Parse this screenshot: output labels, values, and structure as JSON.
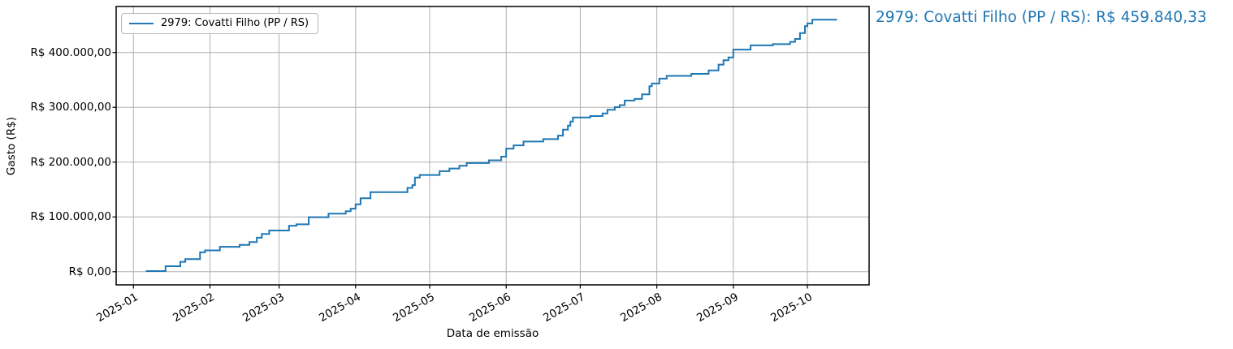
{
  "annotation": {
    "text": "2979: Covatti Filho (PP / RS): R$ 459.840,33",
    "color": "#1f77b4"
  },
  "chart_data": {
    "type": "line",
    "style": "cumulative-step",
    "title": "",
    "xlabel": "Data de emissão",
    "ylabel": "Gasto (R$)",
    "grid": true,
    "legend": {
      "position": "upper left",
      "entries": [
        {
          "label": "2979: Covatti Filho (PP / RS)",
          "color": "#1f77b4"
        }
      ]
    },
    "line_color": "#1f77b4",
    "grid_color": "#b0b0b0",
    "x_range": [
      "2024-12-25",
      "2025-10-26"
    ],
    "y_range": [
      -24000,
      484000
    ],
    "x_ticks": [
      {
        "label": "2025-01",
        "date": "2025-01-01"
      },
      {
        "label": "2025-02",
        "date": "2025-02-01"
      },
      {
        "label": "2025-03",
        "date": "2025-03-01"
      },
      {
        "label": "2025-04",
        "date": "2025-04-01"
      },
      {
        "label": "2025-05",
        "date": "2025-05-01"
      },
      {
        "label": "2025-06",
        "date": "2025-06-01"
      },
      {
        "label": "2025-07",
        "date": "2025-07-01"
      },
      {
        "label": "2025-08",
        "date": "2025-08-01"
      },
      {
        "label": "2025-09",
        "date": "2025-09-01"
      },
      {
        "label": "2025-10",
        "date": "2025-10-01"
      }
    ],
    "y_ticks": [
      {
        "label": "R$ 0,00",
        "value": 0
      },
      {
        "label": "R$ 100.000,00",
        "value": 100000
      },
      {
        "label": "R$ 200.000,00",
        "value": 200000
      },
      {
        "label": "R$ 300.000,00",
        "value": 300000
      },
      {
        "label": "R$ 400.000,00",
        "value": 400000
      }
    ],
    "final_total": 459840.33,
    "final_total_label": "R$ 459.840,33",
    "series": [
      {
        "name": "2979: Covatti Filho (PP / RS)",
        "points": [
          [
            "2025-01-06",
            1200
          ],
          [
            "2025-01-14",
            10100
          ],
          [
            "2025-01-20",
            18100
          ],
          [
            "2025-01-22",
            23000
          ],
          [
            "2025-01-28",
            35400
          ],
          [
            "2025-01-30",
            38900
          ],
          [
            "2025-02-05",
            45500
          ],
          [
            "2025-02-13",
            49000
          ],
          [
            "2025-02-17",
            54000
          ],
          [
            "2025-02-20",
            62000
          ],
          [
            "2025-02-22",
            69000
          ],
          [
            "2025-02-25",
            75200
          ],
          [
            "2025-03-05",
            84000
          ],
          [
            "2025-03-08",
            86500
          ],
          [
            "2025-03-13",
            99500
          ],
          [
            "2025-03-21",
            106000
          ],
          [
            "2025-03-28",
            110500
          ],
          [
            "2025-03-30",
            115000
          ],
          [
            "2025-04-01",
            123000
          ],
          [
            "2025-04-03",
            134000
          ],
          [
            "2025-04-07",
            145300
          ],
          [
            "2025-04-22",
            153000
          ],
          [
            "2025-04-24",
            158000
          ],
          [
            "2025-04-25",
            172000
          ],
          [
            "2025-04-27",
            176500
          ],
          [
            "2025-05-05",
            183500
          ],
          [
            "2025-05-09",
            188400
          ],
          [
            "2025-05-13",
            193400
          ],
          [
            "2025-05-16",
            198300
          ],
          [
            "2025-05-25",
            203300
          ],
          [
            "2025-05-30",
            210000
          ],
          [
            "2025-06-01",
            224700
          ],
          [
            "2025-06-04",
            230600
          ],
          [
            "2025-06-08",
            237600
          ],
          [
            "2025-06-16",
            242000
          ],
          [
            "2025-06-22",
            248400
          ],
          [
            "2025-06-24",
            259300
          ],
          [
            "2025-06-26",
            266700
          ],
          [
            "2025-06-27",
            274000
          ],
          [
            "2025-06-28",
            281600
          ],
          [
            "2025-07-05",
            284000
          ],
          [
            "2025-07-10",
            289000
          ],
          [
            "2025-07-12",
            295400
          ],
          [
            "2025-07-15",
            300400
          ],
          [
            "2025-07-17",
            304000
          ],
          [
            "2025-07-19",
            312300
          ],
          [
            "2025-07-23",
            315300
          ],
          [
            "2025-07-26",
            323700
          ],
          [
            "2025-07-29",
            338500
          ],
          [
            "2025-07-30",
            343500
          ],
          [
            "2025-08-02",
            352400
          ],
          [
            "2025-08-05",
            357400
          ],
          [
            "2025-08-15",
            361000
          ],
          [
            "2025-08-22",
            367300
          ],
          [
            "2025-08-26",
            378000
          ],
          [
            "2025-08-28",
            386000
          ],
          [
            "2025-08-30",
            391000
          ],
          [
            "2025-09-01",
            405300
          ],
          [
            "2025-09-08",
            413000
          ],
          [
            "2025-09-17",
            415300
          ],
          [
            "2025-09-24",
            419400
          ],
          [
            "2025-09-26",
            424700
          ],
          [
            "2025-09-28",
            435600
          ],
          [
            "2025-09-30",
            448000
          ],
          [
            "2025-10-01",
            453000
          ],
          [
            "2025-10-03",
            459840.33
          ],
          [
            "2025-10-13",
            459840.33
          ]
        ]
      }
    ]
  }
}
